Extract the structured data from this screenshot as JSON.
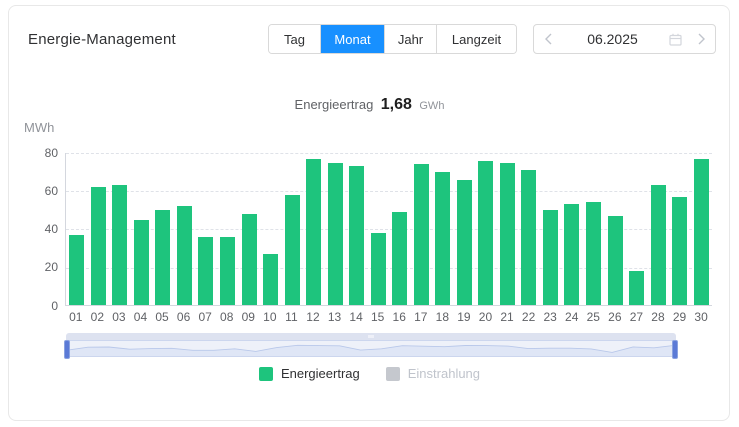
{
  "header": {
    "title": "Energie-Management",
    "tabs": [
      {
        "label": "Tag",
        "active": false
      },
      {
        "label": "Monat",
        "active": true
      },
      {
        "label": "Jahr",
        "active": false
      },
      {
        "label": "Langzeit",
        "active": false
      }
    ],
    "date_nav": {
      "prev_icon": "chevron-left",
      "value": "06.2025",
      "calendar_icon": "calendar",
      "next_icon": "chevron-right"
    }
  },
  "summary": {
    "label": "Energieertrag",
    "value": "1,68",
    "unit": "GWh"
  },
  "chart_data": {
    "type": "bar",
    "title": "Energieertrag 1,68 GWh",
    "xlabel": "",
    "ylabel": "MWh",
    "ylim": [
      0,
      80
    ],
    "yticks": [
      0,
      20,
      40,
      60,
      80
    ],
    "ytick_labels_top_down": [
      "80",
      "60",
      "40",
      "20",
      "0"
    ],
    "grid": "horizontal-dashed",
    "legend_position": "bottom",
    "categories": [
      "01",
      "02",
      "03",
      "04",
      "05",
      "06",
      "07",
      "08",
      "09",
      "10",
      "11",
      "12",
      "13",
      "14",
      "15",
      "16",
      "17",
      "18",
      "19",
      "20",
      "21",
      "22",
      "23",
      "24",
      "25",
      "26",
      "27",
      "28",
      "29",
      "30"
    ],
    "series": [
      {
        "name": "Energieertrag",
        "unit": "MWh",
        "color": "#1ec47d",
        "visible": true,
        "values": [
          37,
          62,
          63,
          45,
          50,
          52,
          36,
          36,
          48,
          27,
          58,
          77,
          75,
          73,
          38,
          49,
          74,
          70,
          66,
          76,
          75,
          71,
          50,
          53,
          54,
          47,
          18,
          63,
          57,
          77
        ]
      },
      {
        "name": "Einstrahlung",
        "color": "#c5c8ce",
        "visible": false,
        "values": []
      }
    ]
  },
  "legend": [
    {
      "label": "Energieertrag",
      "color": "#1ec47d",
      "enabled": true
    },
    {
      "label": "Einstrahlung",
      "color": "#c5c8ce",
      "enabled": false
    }
  ],
  "colors": {
    "accent_blue": "#1890ff",
    "bar_green": "#1ec47d",
    "slider_handle": "#5b7ad6",
    "card_border": "#e8e8e8"
  }
}
